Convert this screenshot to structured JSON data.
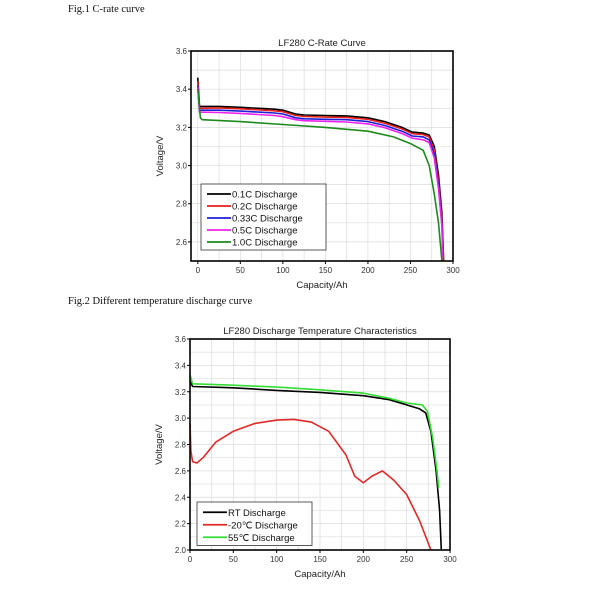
{
  "captions": {
    "fig1": "Fig.1  C-rate curve",
    "fig2": "Fig.2  Different  temperature  discharge  curve"
  },
  "chart_data": [
    {
      "type": "line",
      "title": "LF280 C-Rate Curve",
      "xlabel": "Capacity/Ah",
      "ylabel": "Voltage/V",
      "xlim": [
        -8,
        300
      ],
      "ylim": [
        2.5,
        3.6
      ],
      "xticks": [
        0,
        50,
        100,
        150,
        200,
        250,
        300
      ],
      "yticks": [
        2.6,
        2.8,
        3.0,
        3.2,
        3.4,
        3.6
      ],
      "grid": true,
      "legend": "bottom-left",
      "series": [
        {
          "name": "0.1C   Discharge",
          "color": "#000000",
          "points": [
            [
              0,
              3.46
            ],
            [
              2,
              3.31
            ],
            [
              25,
              3.31
            ],
            [
              50,
              3.305
            ],
            [
              90,
              3.295
            ],
            [
              100,
              3.29
            ],
            [
              115,
              3.27
            ],
            [
              125,
              3.265
            ],
            [
              150,
              3.262
            ],
            [
              175,
              3.26
            ],
            [
              200,
              3.25
            ],
            [
              220,
              3.23
            ],
            [
              240,
              3.2
            ],
            [
              252,
              3.175
            ],
            [
              265,
              3.17
            ],
            [
              272,
              3.16
            ],
            [
              278,
              3.1
            ],
            [
              283,
              2.95
            ],
            [
              287,
              2.75
            ],
            [
              289,
              2.5
            ]
          ]
        },
        {
          "name": "0.2C   Discharge",
          "color": "#e8211a",
          "points": [
            [
              0,
              3.44
            ],
            [
              2,
              3.3
            ],
            [
              25,
              3.302
            ],
            [
              50,
              3.297
            ],
            [
              90,
              3.287
            ],
            [
              100,
              3.282
            ],
            [
              115,
              3.262
            ],
            [
              125,
              3.257
            ],
            [
              150,
              3.254
            ],
            [
              175,
              3.252
            ],
            [
              200,
              3.242
            ],
            [
              220,
              3.222
            ],
            [
              240,
              3.192
            ],
            [
              252,
              3.167
            ],
            [
              265,
              3.162
            ],
            [
              272,
              3.15
            ],
            [
              278,
              3.08
            ],
            [
              283,
              2.92
            ],
            [
              287,
              2.72
            ],
            [
              289,
              2.5
            ]
          ]
        },
        {
          "name": "0.33C Discharge",
          "color": "#1f1fd6",
          "points": [
            [
              0,
              3.42
            ],
            [
              2,
              3.29
            ],
            [
              25,
              3.29
            ],
            [
              50,
              3.285
            ],
            [
              90,
              3.275
            ],
            [
              100,
              3.27
            ],
            [
              115,
              3.25
            ],
            [
              125,
              3.245
            ],
            [
              150,
              3.242
            ],
            [
              175,
              3.24
            ],
            [
              200,
              3.23
            ],
            [
              220,
              3.21
            ],
            [
              240,
              3.18
            ],
            [
              252,
              3.155
            ],
            [
              265,
              3.15
            ],
            [
              272,
              3.135
            ],
            [
              278,
              3.06
            ],
            [
              283,
              2.9
            ],
            [
              287,
              2.7
            ],
            [
              288.5,
              2.5
            ]
          ]
        },
        {
          "name": "0.5C   Discharge",
          "color": "#ee22ee",
          "points": [
            [
              0,
              3.41
            ],
            [
              2,
              3.28
            ],
            [
              25,
              3.278
            ],
            [
              50,
              3.273
            ],
            [
              90,
              3.262
            ],
            [
              100,
              3.256
            ],
            [
              115,
              3.24
            ],
            [
              125,
              3.235
            ],
            [
              150,
              3.232
            ],
            [
              175,
              3.228
            ],
            [
              200,
              3.218
            ],
            [
              220,
              3.198
            ],
            [
              240,
              3.168
            ],
            [
              252,
              3.143
            ],
            [
              265,
              3.135
            ],
            [
              272,
              3.12
            ],
            [
              278,
              3.04
            ],
            [
              283,
              2.88
            ],
            [
              287,
              2.68
            ],
            [
              288,
              2.5
            ]
          ]
        },
        {
          "name": "1.0C   Discharge",
          "color": "#1e8a1e",
          "points": [
            [
              0,
              3.4
            ],
            [
              3,
              3.25
            ],
            [
              5,
              3.24
            ],
            [
              50,
              3.23
            ],
            [
              100,
              3.215
            ],
            [
              150,
              3.2
            ],
            [
              200,
              3.18
            ],
            [
              230,
              3.15
            ],
            [
              250,
              3.115
            ],
            [
              265,
              3.08
            ],
            [
              272,
              3.0
            ],
            [
              278,
              2.85
            ],
            [
              283,
              2.7
            ],
            [
              287,
              2.5
            ]
          ]
        }
      ]
    },
    {
      "type": "line",
      "title": "LF280 Discharge Temperature Characteristics",
      "xlabel": "Capacity/Ah",
      "ylabel": "Voltage/V",
      "xlim": [
        0,
        300
      ],
      "ylim": [
        2.0,
        3.6
      ],
      "xticks": [
        0,
        50,
        100,
        150,
        200,
        250,
        300
      ],
      "yticks": [
        2.0,
        2.2,
        2.4,
        2.6,
        2.8,
        3.0,
        3.2,
        3.4,
        3.6
      ],
      "grid": true,
      "legend": "bottom-left",
      "series": [
        {
          "name": "RT        Discharge",
          "color": "#000000",
          "points": [
            [
              0,
              3.28
            ],
            [
              3,
              3.24
            ],
            [
              50,
              3.23
            ],
            [
              100,
              3.21
            ],
            [
              150,
              3.195
            ],
            [
              200,
              3.17
            ],
            [
              230,
              3.14
            ],
            [
              250,
              3.1
            ],
            [
              265,
              3.07
            ],
            [
              272,
              3.04
            ],
            [
              278,
              2.9
            ],
            [
              284,
              2.6
            ],
            [
              288,
              2.3
            ],
            [
              290,
              2.0
            ]
          ]
        },
        {
          "name": "-20℃   Discharge",
          "color": "#e02828",
          "points": [
            [
              0,
              2.96
            ],
            [
              1,
              2.75
            ],
            [
              3,
              2.67
            ],
            [
              8,
              2.66
            ],
            [
              15,
              2.7
            ],
            [
              30,
              2.82
            ],
            [
              50,
              2.9
            ],
            [
              75,
              2.96
            ],
            [
              100,
              2.985
            ],
            [
              120,
              2.99
            ],
            [
              140,
              2.97
            ],
            [
              160,
              2.9
            ],
            [
              180,
              2.72
            ],
            [
              190,
              2.56
            ],
            [
              200,
              2.51
            ],
            [
              210,
              2.56
            ],
            [
              222,
              2.6
            ],
            [
              235,
              2.53
            ],
            [
              250,
              2.42
            ],
            [
              265,
              2.22
            ],
            [
              278,
              1.99
            ]
          ]
        },
        {
          "name": "55℃    Discharge",
          "color": "#33dd33",
          "points": [
            [
              0,
              3.33
            ],
            [
              3,
              3.26
            ],
            [
              50,
              3.25
            ],
            [
              100,
              3.235
            ],
            [
              150,
              3.215
            ],
            [
              200,
              3.19
            ],
            [
              230,
              3.15
            ],
            [
              250,
              3.115
            ],
            [
              268,
              3.1
            ],
            [
              274,
              3.05
            ],
            [
              280,
              2.85
            ],
            [
              285,
              2.6
            ],
            [
              287,
              2.47
            ]
          ]
        }
      ]
    }
  ]
}
